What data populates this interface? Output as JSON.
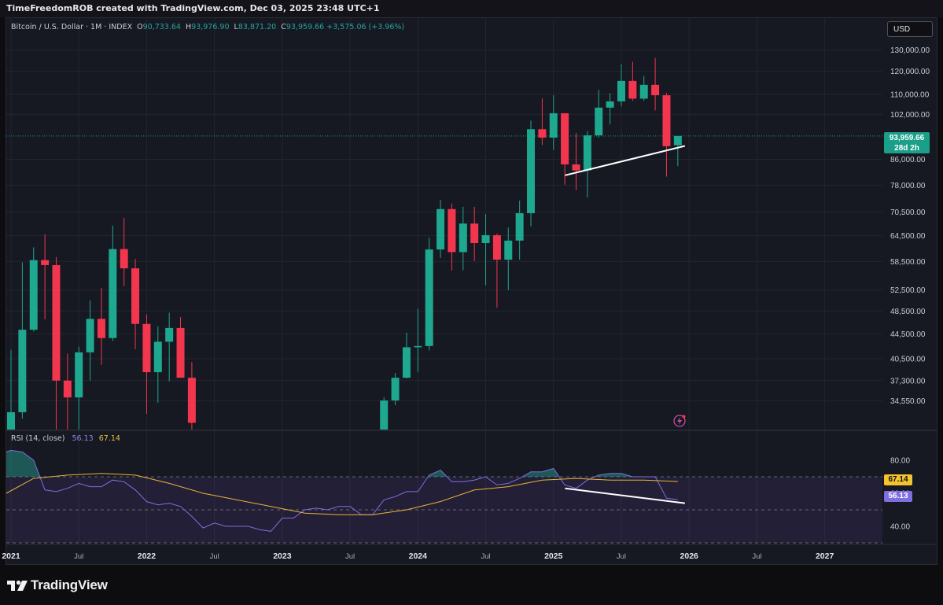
{
  "header": {
    "text": "TimeFreedomROB created with TradingView.com, Dec 03, 2025 23:48 UTC+1"
  },
  "legend": {
    "symbol": "Bitcoin / U.S. Dollar · 1M · INDEX",
    "o_label": "O",
    "o": "90,733.64",
    "h_label": "H",
    "h": "93,976.90",
    "l_label": "L",
    "l": "83,871.20",
    "c_label": "C",
    "c": "93,959.66",
    "change": "+3,575.06 (+3.96%)"
  },
  "currency": "USD",
  "last_price": {
    "price": "93,959.66",
    "countdown": "28d 2h"
  },
  "rsi_legend": {
    "name": "RSI (14, close)",
    "rsi": "56.13",
    "ma": "67.14"
  },
  "rsi_tags": {
    "ma": "67.14",
    "rsi": "56.13"
  },
  "brand": "TradingView",
  "colors": {
    "up": "#1ea88f",
    "down": "#f2364e",
    "rsi": "#7e6ee0",
    "rsi_ma": "#e8b53a",
    "trendline": "#ffffff",
    "bg": "#161822"
  },
  "chart_data": [
    {
      "type": "candlestick",
      "title": "Bitcoin / U.S. Dollar · 1M · INDEX",
      "scale": "log",
      "ylim": [
        31000,
        137000
      ],
      "y_ticks": [
        "34,550.00",
        "37,300.00",
        "40,500.00",
        "44,500.00",
        "48,500.00",
        "52,500.00",
        "58,500.00",
        "64,500.00",
        "70,500.00",
        "78,000.00",
        "86,000.00",
        "102,000.00",
        "110,000.00",
        "120,000.00",
        "130,000.00"
      ],
      "x_ticks": [
        "2021",
        "Jul",
        "2022",
        "Jul",
        "2023",
        "Jul",
        "2024",
        "Jul",
        "2025",
        "Jul",
        "2026",
        "Jul",
        "2027"
      ],
      "candles": [
        {
          "date": "2021-01",
          "o": 29000,
          "h": 41900,
          "l": 28100,
          "c": 33100
        },
        {
          "date": "2021-02",
          "o": 33100,
          "h": 58300,
          "l": 32300,
          "c": 45200
        },
        {
          "date": "2021-03",
          "o": 45200,
          "h": 61700,
          "l": 44900,
          "c": 58800
        },
        {
          "date": "2021-04",
          "o": 58800,
          "h": 64800,
          "l": 47000,
          "c": 57700
        },
        {
          "date": "2021-05",
          "o": 57700,
          "h": 59500,
          "l": 30000,
          "c": 37300
        },
        {
          "date": "2021-06",
          "o": 37300,
          "h": 41300,
          "l": 28800,
          "c": 35000
        },
        {
          "date": "2021-07",
          "o": 35000,
          "h": 42400,
          "l": 29300,
          "c": 41500
        },
        {
          "date": "2021-08",
          "o": 41500,
          "h": 50500,
          "l": 37300,
          "c": 47100
        },
        {
          "date": "2021-09",
          "o": 47100,
          "h": 52900,
          "l": 39600,
          "c": 43800
        },
        {
          "date": "2021-10",
          "o": 43800,
          "h": 67000,
          "l": 43300,
          "c": 61300
        },
        {
          "date": "2021-11",
          "o": 61300,
          "h": 69000,
          "l": 53300,
          "c": 57000
        },
        {
          "date": "2021-12",
          "o": 57000,
          "h": 59100,
          "l": 42000,
          "c": 46200
        },
        {
          "date": "2022-01",
          "o": 46200,
          "h": 47900,
          "l": 32900,
          "c": 38500
        },
        {
          "date": "2022-02",
          "o": 38500,
          "h": 45800,
          "l": 34300,
          "c": 43200
        },
        {
          "date": "2022-03",
          "o": 43200,
          "h": 48200,
          "l": 37200,
          "c": 45500
        },
        {
          "date": "2022-04",
          "o": 45500,
          "h": 47400,
          "l": 37700,
          "c": 37700
        },
        {
          "date": "2022-05",
          "o": 37700,
          "h": 40000,
          "l": 26700,
          "c": 31800
        }
      ],
      "candles_2024": [
        {
          "date": "2023-10",
          "o": 27000,
          "h": 35000,
          "l": 26900,
          "c": 34600
        },
        {
          "date": "2023-11",
          "o": 34600,
          "h": 38400,
          "l": 34000,
          "c": 37700
        },
        {
          "date": "2023-12",
          "o": 37700,
          "h": 44700,
          "l": 37600,
          "c": 42300
        },
        {
          "date": "2024-01",
          "o": 42300,
          "h": 48900,
          "l": 38500,
          "c": 42500
        },
        {
          "date": "2024-02",
          "o": 42500,
          "h": 64000,
          "l": 41800,
          "c": 61200
        },
        {
          "date": "2024-03",
          "o": 61200,
          "h": 73800,
          "l": 59300,
          "c": 71300
        },
        {
          "date": "2024-04",
          "o": 71300,
          "h": 72800,
          "l": 56500,
          "c": 60600
        },
        {
          "date": "2024-05",
          "o": 60600,
          "h": 71900,
          "l": 56600,
          "c": 67500
        },
        {
          "date": "2024-06",
          "o": 67500,
          "h": 71900,
          "l": 58600,
          "c": 62700
        },
        {
          "date": "2024-07",
          "o": 62700,
          "h": 70000,
          "l": 53500,
          "c": 64600
        },
        {
          "date": "2024-08",
          "o": 64600,
          "h": 65000,
          "l": 49100,
          "c": 58900
        },
        {
          "date": "2024-09",
          "o": 58900,
          "h": 66500,
          "l": 52500,
          "c": 63300
        },
        {
          "date": "2024-10",
          "o": 63300,
          "h": 73600,
          "l": 58900,
          "c": 70200
        },
        {
          "date": "2024-11",
          "o": 70200,
          "h": 99600,
          "l": 66800,
          "c": 96400
        },
        {
          "date": "2024-12",
          "o": 96400,
          "h": 108300,
          "l": 90800,
          "c": 93400
        },
        {
          "date": "2025-01",
          "o": 93400,
          "h": 109600,
          "l": 89200,
          "c": 102400
        },
        {
          "date": "2025-02",
          "o": 102400,
          "h": 102500,
          "l": 78200,
          "c": 84400
        },
        {
          "date": "2025-03",
          "o": 84400,
          "h": 95000,
          "l": 76600,
          "c": 82500
        },
        {
          "date": "2025-04",
          "o": 82500,
          "h": 95700,
          "l": 74500,
          "c": 94200
        },
        {
          "date": "2025-05",
          "o": 94200,
          "h": 111900,
          "l": 93400,
          "c": 104600
        },
        {
          "date": "2025-06",
          "o": 104600,
          "h": 110600,
          "l": 98200,
          "c": 107100
        },
        {
          "date": "2025-07",
          "o": 107100,
          "h": 123200,
          "l": 105100,
          "c": 115700
        },
        {
          "date": "2025-08",
          "o": 115700,
          "h": 124400,
          "l": 107300,
          "c": 108200
        },
        {
          "date": "2025-09",
          "o": 108200,
          "h": 117900,
          "l": 107300,
          "c": 114000
        },
        {
          "date": "2025-10",
          "o": 114000,
          "h": 126200,
          "l": 103500,
          "c": 109600
        },
        {
          "date": "2025-11",
          "o": 109600,
          "h": 110600,
          "l": 80600,
          "c": 90400
        },
        {
          "date": "2025-12",
          "o": 90733.64,
          "h": 93976.9,
          "l": 83871.2,
          "c": 93959.66
        }
      ],
      "trendline": [
        {
          "date": "2025-03",
          "value": 81000
        },
        {
          "date": "2025-12",
          "value": 90500
        }
      ]
    },
    {
      "type": "line",
      "title": "RSI (14, close)",
      "ylim": [
        30,
        90
      ],
      "y_ticks": [
        "40.00",
        "60.00",
        "80.00"
      ],
      "bands": [
        70,
        50,
        30
      ],
      "series": [
        {
          "name": "RSI",
          "values": [
            {
              "date": "2020-12",
              "v": 85
            },
            {
              "date": "2021-01",
              "v": 86
            },
            {
              "date": "2021-02",
              "v": 85
            },
            {
              "date": "2021-03",
              "v": 80
            },
            {
              "date": "2021-04",
              "v": 62
            },
            {
              "date": "2021-05",
              "v": 61
            },
            {
              "date": "2021-06",
              "v": 63
            },
            {
              "date": "2021-07",
              "v": 66
            },
            {
              "date": "2021-08",
              "v": 64
            },
            {
              "date": "2021-09",
              "v": 64
            },
            {
              "date": "2021-10",
              "v": 68
            },
            {
              "date": "2021-11",
              "v": 67
            },
            {
              "date": "2021-12",
              "v": 62
            },
            {
              "date": "2022-01",
              "v": 55
            },
            {
              "date": "2022-02",
              "v": 53
            },
            {
              "date": "2022-03",
              "v": 54
            },
            {
              "date": "2022-04",
              "v": 52
            },
            {
              "date": "2022-05",
              "v": 46
            },
            {
              "date": "2022-06",
              "v": 39
            },
            {
              "date": "2022-07",
              "v": 42
            },
            {
              "date": "2022-08",
              "v": 40
            },
            {
              "date": "2022-09",
              "v": 40
            },
            {
              "date": "2022-10",
              "v": 40
            },
            {
              "date": "2022-11",
              "v": 38
            },
            {
              "date": "2022-12",
              "v": 37
            },
            {
              "date": "2023-01",
              "v": 45
            },
            {
              "date": "2023-02",
              "v": 45
            },
            {
              "date": "2023-03",
              "v": 50
            },
            {
              "date": "2023-04",
              "v": 51
            },
            {
              "date": "2023-05",
              "v": 50
            },
            {
              "date": "2023-06",
              "v": 52
            },
            {
              "date": "2023-07",
              "v": 52
            },
            {
              "date": "2023-08",
              "v": 47
            },
            {
              "date": "2023-09",
              "v": 47
            },
            {
              "date": "2023-10",
              "v": 56
            },
            {
              "date": "2023-11",
              "v": 58
            },
            {
              "date": "2023-12",
              "v": 61
            },
            {
              "date": "2024-01",
              "v": 61
            },
            {
              "date": "2024-02",
              "v": 71
            },
            {
              "date": "2024-03",
              "v": 74
            },
            {
              "date": "2024-04",
              "v": 67
            },
            {
              "date": "2024-05",
              "v": 67
            },
            {
              "date": "2024-06",
              "v": 68
            },
            {
              "date": "2024-07",
              "v": 70
            },
            {
              "date": "2024-08",
              "v": 65
            },
            {
              "date": "2024-09",
              "v": 66
            },
            {
              "date": "2024-10",
              "v": 69
            },
            {
              "date": "2024-11",
              "v": 73
            },
            {
              "date": "2024-12",
              "v": 73
            },
            {
              "date": "2025-01",
              "v": 75
            },
            {
              "date": "2025-02",
              "v": 65
            },
            {
              "date": "2025-03",
              "v": 63
            },
            {
              "date": "2025-04",
              "v": 68
            },
            {
              "date": "2025-05",
              "v": 71
            },
            {
              "date": "2025-06",
              "v": 72
            },
            {
              "date": "2025-07",
              "v": 72
            },
            {
              "date": "2025-08",
              "v": 70
            },
            {
              "date": "2025-09",
              "v": 70
            },
            {
              "date": "2025-10",
              "v": 70
            },
            {
              "date": "2025-11",
              "v": 57
            },
            {
              "date": "2025-12",
              "v": 56.13
            }
          ]
        },
        {
          "name": "RSI-based MA",
          "values": [
            {
              "date": "2020-12",
              "v": 60
            },
            {
              "date": "2021-03",
              "v": 69
            },
            {
              "date": "2021-06",
              "v": 71
            },
            {
              "date": "2021-09",
              "v": 72
            },
            {
              "date": "2021-12",
              "v": 71
            },
            {
              "date": "2022-03",
              "v": 66
            },
            {
              "date": "2022-06",
              "v": 60
            },
            {
              "date": "2022-09",
              "v": 56
            },
            {
              "date": "2022-12",
              "v": 52
            },
            {
              "date": "2023-03",
              "v": 48
            },
            {
              "date": "2023-06",
              "v": 47
            },
            {
              "date": "2023-09",
              "v": 47
            },
            {
              "date": "2023-12",
              "v": 50
            },
            {
              "date": "2024-03",
              "v": 55
            },
            {
              "date": "2024-06",
              "v": 62
            },
            {
              "date": "2024-09",
              "v": 64
            },
            {
              "date": "2024-12",
              "v": 68
            },
            {
              "date": "2025-03",
              "v": 69
            },
            {
              "date": "2025-06",
              "v": 68
            },
            {
              "date": "2025-09",
              "v": 68
            },
            {
              "date": "2025-12",
              "v": 67.14
            }
          ]
        }
      ],
      "divergence_line": [
        {
          "date": "2025-03",
          "value": 63
        },
        {
          "date": "2025-12",
          "value": 54
        }
      ]
    }
  ]
}
